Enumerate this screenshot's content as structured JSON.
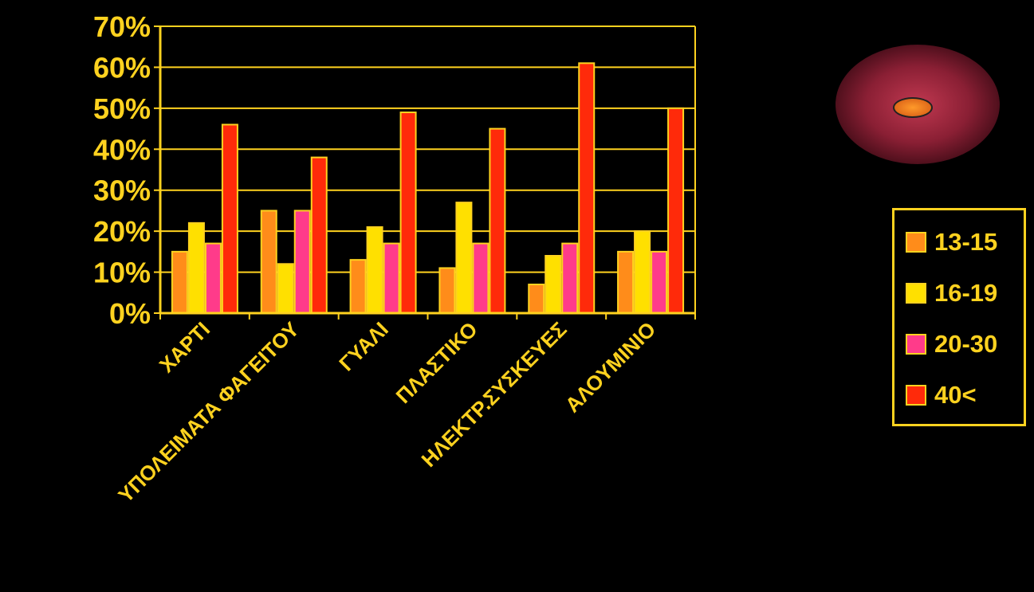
{
  "chart_data": {
    "type": "bar",
    "categories": [
      "ΧΑΡΤΙ",
      "ΥΠΟΛΕΙΜΑΤΑ ΦΑΓΕΙΤΟΥ",
      "ΓΥΑΛΙ",
      "ΠΛΑΣΤΙΚΟ",
      "ΗΛΕΚΤΡ.ΣΥΣΚΕΥΕΣ",
      "ΑΛΟΥΜΙΝΙΟ"
    ],
    "series": [
      {
        "name": "13-15",
        "color": "#FF8C1A",
        "values": [
          15,
          25,
          13,
          11,
          7,
          15
        ]
      },
      {
        "name": "16-19",
        "color": "#FFE000",
        "values": [
          22,
          12,
          21,
          27,
          14,
          20
        ]
      },
      {
        "name": "20-30",
        "color": "#FF3B8A",
        "values": [
          17,
          25,
          17,
          17,
          17,
          15
        ]
      },
      {
        "name": "40<",
        "color": "#FF2A0A",
        "values": [
          46,
          38,
          49,
          45,
          61,
          50
        ]
      }
    ],
    "yticks": [
      "0%",
      "10%",
      "20%",
      "30%",
      "40%",
      "50%",
      "60%",
      "70%"
    ],
    "ylim": [
      0,
      70
    ],
    "grid": true,
    "legend_position": "right",
    "axis_color": "#FFD21F"
  }
}
